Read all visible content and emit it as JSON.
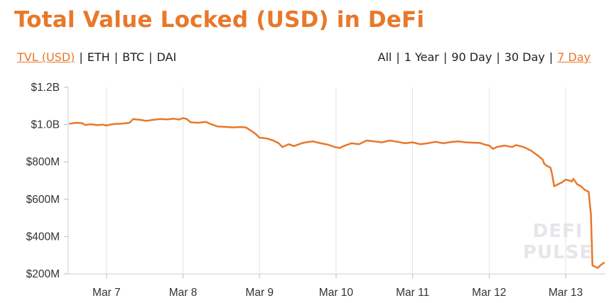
{
  "header": {
    "title": "Total Value Locked (USD) in DeFi"
  },
  "metric_options": [
    {
      "label": "TVL (USD)",
      "active": true
    },
    {
      "label": "ETH",
      "active": false
    },
    {
      "label": "BTC",
      "active": false
    },
    {
      "label": "DAI",
      "active": false
    }
  ],
  "range_options": [
    {
      "label": "All",
      "active": false
    },
    {
      "label": "1 Year",
      "active": false
    },
    {
      "label": "90 Day",
      "active": false
    },
    {
      "label": "30 Day",
      "active": false
    },
    {
      "label": "7 Day",
      "active": true
    }
  ],
  "watermark": [
    "DEFI",
    "PULSE"
  ],
  "colors": {
    "accent": "#e8782a",
    "grid": "#e3e3e3",
    "text": "#333333"
  },
  "chart_data": {
    "type": "line",
    "title": "Total Value Locked (USD) in DeFi",
    "xlabel": "",
    "ylabel": "",
    "x_tick_labels": [
      "Mar 7",
      "Mar 8",
      "Mar 9",
      "Mar 10",
      "Mar 11",
      "Mar 12",
      "Mar 13"
    ],
    "x_tick_positions": [
      7,
      8,
      9,
      10,
      11,
      12,
      13
    ],
    "xlim": [
      6.5,
      13.52
    ],
    "y_tick_labels": [
      "$200M",
      "$400M",
      "$600M",
      "$800M",
      "$1.0B",
      "$1.2B"
    ],
    "y_tick_values": [
      200,
      400,
      600,
      800,
      1000,
      1200
    ],
    "ylim": [
      200,
      1200
    ],
    "y_unit": "USD millions",
    "grid": {
      "vertical": true,
      "horizontal": false
    },
    "series": [
      {
        "color": "#e8782a",
        "x": [
          6.52,
          6.6,
          6.68,
          6.72,
          6.8,
          6.88,
          6.95,
          7.0,
          7.05,
          7.1,
          7.2,
          7.3,
          7.35,
          7.45,
          7.52,
          7.6,
          7.7,
          7.8,
          7.88,
          7.95,
          8.0,
          8.05,
          8.1,
          8.2,
          8.3,
          8.35,
          8.45,
          8.55,
          8.65,
          8.75,
          8.82,
          8.88,
          8.95,
          9.0,
          9.05,
          9.1,
          9.18,
          9.25,
          9.3,
          9.38,
          9.45,
          9.55,
          9.6,
          9.7,
          9.8,
          9.9,
          9.98,
          10.05,
          10.1,
          10.2,
          10.3,
          10.4,
          10.5,
          10.6,
          10.7,
          10.8,
          10.9,
          11.0,
          11.1,
          11.2,
          11.3,
          11.4,
          11.5,
          11.6,
          11.7,
          11.8,
          11.88,
          11.95,
          12.0,
          12.05,
          12.1,
          12.2,
          12.3,
          12.35,
          12.45,
          12.55,
          12.6,
          12.65,
          12.7,
          12.72,
          12.75,
          12.8,
          12.82,
          12.85,
          12.9,
          12.95,
          13.0,
          13.05,
          13.08,
          13.1,
          13.15,
          13.2,
          13.25,
          13.3,
          13.33,
          13.35,
          13.38,
          13.42,
          13.45,
          13.5
        ],
        "values": [
          1005,
          1010,
          1008,
          998,
          1002,
          997,
          1000,
          995,
          1000,
          1003,
          1005,
          1010,
          1030,
          1025,
          1020,
          1025,
          1030,
          1028,
          1032,
          1027,
          1035,
          1030,
          1012,
          1010,
          1015,
          1005,
          990,
          988,
          985,
          987,
          985,
          970,
          950,
          930,
          928,
          925,
          915,
          900,
          880,
          895,
          885,
          900,
          905,
          910,
          900,
          892,
          880,
          875,
          885,
          900,
          895,
          915,
          910,
          905,
          915,
          908,
          900,
          905,
          895,
          900,
          908,
          900,
          907,
          910,
          905,
          903,
          902,
          892,
          888,
          870,
          880,
          888,
          880,
          890,
          880,
          860,
          845,
          830,
          812,
          790,
          780,
          770,
          740,
          670,
          680,
          690,
          705,
          700,
          695,
          710,
          680,
          670,
          650,
          640,
          520,
          245,
          240,
          232,
          245,
          260
        ]
      }
    ]
  }
}
